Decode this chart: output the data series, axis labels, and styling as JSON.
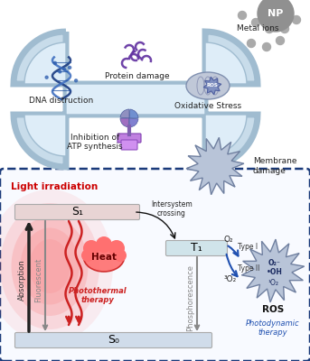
{
  "bg_color": "#ffffff",
  "bact_outer_fill": "#c8dcea",
  "bact_outer_edge": "#a0bcd0",
  "bact_inner_fill": "#deedf8",
  "bact_inner_edge": "#a0bcd0",
  "np_color": "#909090",
  "np_label": "NP",
  "particle_color": "#aaaaaa",
  "metal_ions_label": "Metal ions",
  "membrane_damage_label": "Membrane\ndamage",
  "dna_label": "DNA distruction",
  "protein_label": "Protein damage",
  "atp_label": "Inhibition of\nATP synthesis",
  "oxidative_label": "Oxidative Stress",
  "light_label": "Light irradiation",
  "s1_label": "S₁",
  "s0_label": "S₀",
  "t1_label": "T₁",
  "intersystem_label": "Intersystem\ncrossing",
  "absorption_label": "Absorption",
  "fluorescent_label": "Fluorescent",
  "phosphorescence_label": "Phosphorescence",
  "heat_label": "Heat",
  "photothermal_label": "Photothermal\ntherapy",
  "ros_label": "ROS",
  "photodynamic_label": "Photodynamic\ntherapy",
  "type1_label": "Type I",
  "type2_label": "Type II",
  "dashed_box_color": "#1a3a7a",
  "s1_box_color": "#e8d4d4",
  "s0_box_color": "#d0dcea",
  "t1_box_color": "#d0e4ea",
  "burst_fill": "#b8c4d8",
  "burst_edge": "#7080a0",
  "ros_burst_fill": "#b8c4d8",
  "ros_burst_edge": "#7080a0"
}
